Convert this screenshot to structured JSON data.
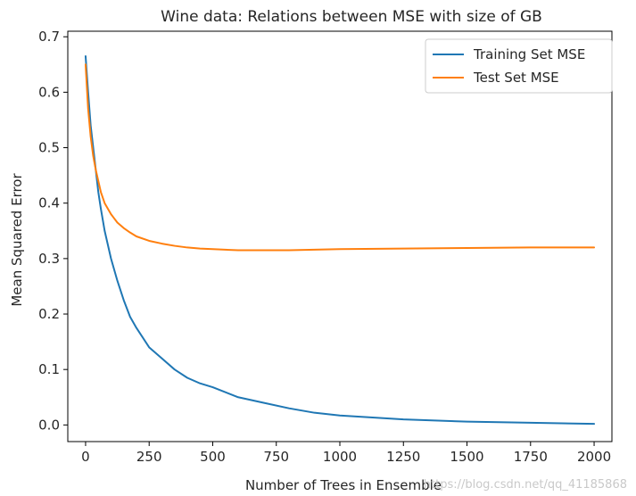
{
  "chart_data": {
    "type": "line",
    "title": "Wine data: Relations between MSE with size of GB",
    "xlabel": "Number of Trees in Ensemble",
    "ylabel": "Mean Squared Error",
    "xlim": [
      -70,
      2070
    ],
    "ylim": [
      -0.03,
      0.71
    ],
    "xticks": [
      0,
      250,
      500,
      750,
      1000,
      1250,
      1500,
      1750,
      2000
    ],
    "yticks": [
      0.0,
      0.1,
      0.2,
      0.3,
      0.4,
      0.5,
      0.6,
      0.7
    ],
    "grid": false,
    "legend_position": "top-right",
    "series": [
      {
        "name": "Training Set MSE",
        "color": "#1f77b4",
        "x": [
          0,
          10,
          20,
          30,
          40,
          50,
          60,
          75,
          100,
          125,
          150,
          175,
          200,
          250,
          300,
          350,
          400,
          450,
          500,
          600,
          700,
          800,
          900,
          1000,
          1250,
          1500,
          1750,
          2000
        ],
        "y": [
          0.665,
          0.6,
          0.54,
          0.5,
          0.46,
          0.42,
          0.39,
          0.35,
          0.3,
          0.26,
          0.225,
          0.195,
          0.175,
          0.14,
          0.12,
          0.1,
          0.085,
          0.075,
          0.068,
          0.05,
          0.04,
          0.03,
          0.022,
          0.017,
          0.01,
          0.006,
          0.004,
          0.002
        ]
      },
      {
        "name": "Test Set MSE",
        "color": "#ff7f0e",
        "x": [
          0,
          10,
          20,
          30,
          40,
          50,
          60,
          75,
          100,
          125,
          150,
          175,
          200,
          250,
          300,
          350,
          400,
          450,
          500,
          600,
          700,
          800,
          900,
          1000,
          1250,
          1500,
          1750,
          2000
        ],
        "y": [
          0.65,
          0.57,
          0.52,
          0.485,
          0.46,
          0.44,
          0.42,
          0.4,
          0.38,
          0.365,
          0.355,
          0.347,
          0.34,
          0.332,
          0.327,
          0.323,
          0.32,
          0.318,
          0.317,
          0.315,
          0.315,
          0.315,
          0.316,
          0.317,
          0.318,
          0.319,
          0.32,
          0.32
        ]
      }
    ],
    "watermark": "https://blog.csdn.net/qq_41185868"
  }
}
